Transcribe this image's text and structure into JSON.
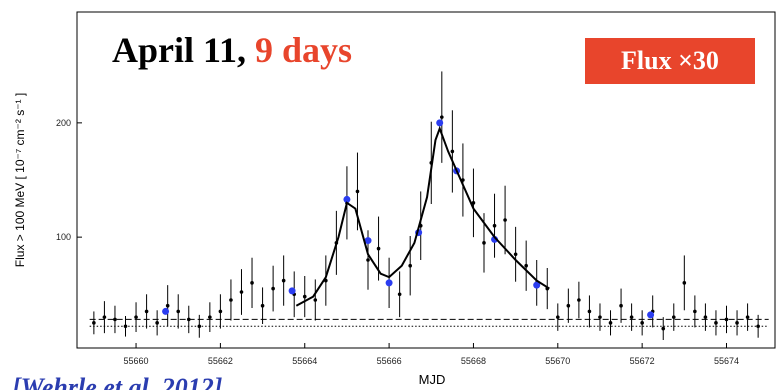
{
  "chart_data": {
    "type": "scatter",
    "title": "April 11,",
    "title_highlight": "9 days",
    "badge": "Flux ×30",
    "citation": "[Wehrle et al. 2012]",
    "x_label": "MJD",
    "y_label": "Flux > 100 MeV [ 10⁻⁷ cm⁻² s⁻¹ ]",
    "xlim": [
      55658.6,
      55675.15
    ],
    "ylim": [
      3,
      297
    ],
    "xticks": [
      55660,
      55662,
      55664,
      55666,
      55668,
      55670,
      55672,
      55674
    ],
    "yticks": [
      100,
      200
    ],
    "series": [
      {
        "color": "#000000",
        "x": [
          55659.0,
          55659.25,
          55659.5,
          55659.75,
          55660.0,
          55660.25,
          55660.5,
          55660.75,
          55661.0,
          55661.25,
          55661.5,
          55661.75,
          55662.0,
          55662.25,
          55662.5,
          55662.75,
          55663.0,
          55663.25,
          55663.5,
          55663.75,
          55664.0,
          55664.25,
          55664.5,
          55664.75,
          55665.0,
          55665.25,
          55665.5,
          55665.75,
          55666.0,
          55666.25,
          55666.5,
          55666.75,
          55667.0,
          55667.25,
          55667.5,
          55667.75,
          55668.0,
          55668.25,
          55668.5,
          55668.75,
          55669.0,
          55669.25,
          55669.5,
          55669.75,
          55670.0,
          55670.25,
          55670.5,
          55670.75,
          55671.0,
          55671.25,
          55671.5,
          55671.75,
          55672.0,
          55672.25,
          55672.5,
          55672.75,
          55673.0,
          55673.25,
          55673.5,
          55673.75,
          55674.0,
          55674.25,
          55674.5,
          55674.75
        ],
        "values": [
          25,
          30,
          28,
          22,
          30,
          35,
          25,
          40,
          35,
          28,
          22,
          30,
          35,
          45,
          52,
          60,
          40,
          55,
          62,
          50,
          48,
          45,
          62,
          95,
          130,
          140,
          80,
          90,
          60,
          50,
          75,
          110,
          165,
          205,
          175,
          150,
          130,
          95,
          110,
          115,
          85,
          75,
          60,
          55,
          30,
          40,
          45,
          35,
          30,
          25,
          40,
          30,
          25,
          35,
          20,
          30,
          60,
          35,
          30,
          25,
          28,
          25,
          30,
          22
        ],
        "errors": [
          10,
          14,
          12,
          9,
          13,
          15,
          11,
          18,
          15,
          12,
          10,
          13,
          15,
          18,
          20,
          22,
          16,
          20,
          22,
          20,
          18,
          18,
          22,
          28,
          32,
          34,
          26,
          28,
          22,
          20,
          26,
          30,
          36,
          40,
          36,
          32,
          30,
          26,
          28,
          30,
          24,
          22,
          20,
          18,
          12,
          15,
          16,
          14,
          12,
          11,
          15,
          12,
          11,
          14,
          10,
          12,
          24,
          14,
          12,
          11,
          12,
          11,
          12,
          10
        ]
      },
      {
        "color": "#2b3df0",
        "x": [
          55660.7,
          55663.7,
          55665.0,
          55665.5,
          55666.0,
          55666.7,
          55667.2,
          55667.6,
          55668.5,
          55669.5,
          55672.2
        ],
        "values": [
          35,
          53,
          133,
          97,
          60,
          104,
          200,
          158,
          98,
          58,
          32
        ]
      }
    ],
    "fit": {
      "color": "#000000",
      "x": [
        55663.8,
        55664.2,
        55664.5,
        55664.8,
        55665.0,
        55665.2,
        55665.5,
        55665.8,
        55666.0,
        55666.3,
        55666.6,
        55666.9,
        55667.1,
        55667.2,
        55667.4,
        55667.7,
        55668.0,
        55668.5,
        55669.0,
        55669.5,
        55669.8
      ],
      "values": [
        40,
        48,
        65,
        100,
        130,
        125,
        85,
        68,
        65,
        75,
        95,
        135,
        185,
        195,
        175,
        150,
        125,
        100,
        80,
        62,
        55
      ]
    },
    "baselines": [
      {
        "value": 28,
        "style": "dashed"
      },
      {
        "value": 22,
        "style": "dotted"
      }
    ]
  }
}
